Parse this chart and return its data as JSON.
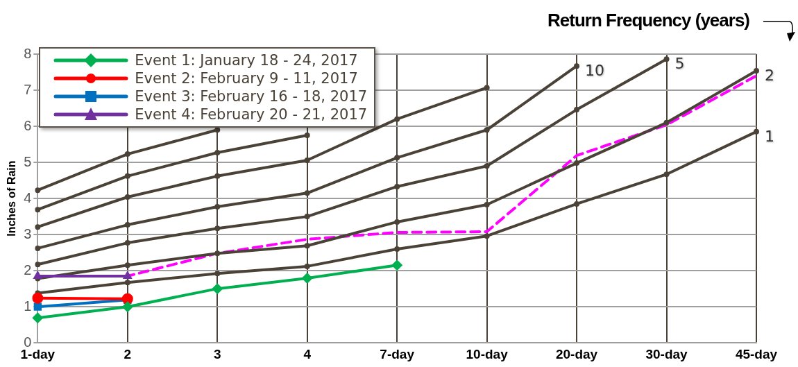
{
  "chart_data": {
    "type": "line",
    "ylabel": "Inches of Rain",
    "categories": [
      "1-day",
      "2",
      "3",
      "4",
      "7-day",
      "10-day",
      "20-day",
      "30-day",
      "45-day"
    ],
    "ylim": [
      0,
      8
    ],
    "yticks": [
      0,
      1,
      2,
      3,
      4,
      5,
      6,
      7,
      8
    ],
    "grid": true,
    "legend": "top left",
    "series": [
      {
        "name": "Event 1: January 18 - 24, 2017",
        "color": "#00b050",
        "marker": "diamond",
        "values": [
          0.69,
          1.0,
          1.5,
          1.79,
          2.15,
          null,
          null,
          null,
          null
        ]
      },
      {
        "name": "Event 2: February 9 - 11, 2017",
        "color": "#ff0000",
        "marker": "circle",
        "values": [
          1.24,
          1.22,
          null,
          null,
          null,
          null,
          null,
          null,
          null
        ]
      },
      {
        "name": "Event 3: February 16 - 18, 2017",
        "color": "#0070c0",
        "marker": "square",
        "values": [
          1.0,
          1.19,
          null,
          null,
          null,
          null,
          null,
          null,
          null
        ]
      },
      {
        "name": "Event 4: February 20 - 21, 2017",
        "color": "#7030a0",
        "marker": "triangle",
        "values": [
          1.85,
          1.85,
          null,
          null,
          null,
          null,
          null,
          null,
          null
        ]
      },
      {
        "color": "#4a4237",
        "marker": "circle",
        "values": [
          1.38,
          1.67,
          1.92,
          2.12,
          2.6,
          2.96,
          3.85,
          4.67,
          5.85
        ]
      },
      {
        "color": "#4a4237",
        "marker": "circle",
        "values": [
          1.78,
          2.15,
          2.48,
          2.69,
          3.35,
          3.83,
          4.98,
          6.1,
          7.54
        ]
      },
      {
        "color": "#4a4237",
        "marker": "circle",
        "values": [
          2.17,
          2.77,
          3.17,
          3.5,
          4.33,
          4.9,
          6.46,
          7.86,
          null
        ]
      },
      {
        "color": "#4a4237",
        "marker": "circle",
        "values": [
          2.62,
          3.27,
          3.77,
          4.15,
          5.13,
          5.9,
          7.67,
          null,
          null
        ]
      },
      {
        "color": "#4a4237",
        "marker": "circle",
        "values": [
          3.21,
          4.04,
          4.62,
          5.06,
          6.2,
          7.07,
          null,
          null,
          null
        ]
      },
      {
        "color": "#4a4237",
        "marker": "circle",
        "values": [
          3.69,
          4.62,
          5.27,
          5.75,
          null,
          null,
          null,
          null,
          null
        ]
      },
      {
        "color": "#4a4237",
        "marker": "circle",
        "values": [
          4.23,
          5.23,
          5.9,
          null,
          null,
          null,
          null,
          null,
          null
        ]
      },
      {
        "color": "#ff00ff",
        "marker": "none",
        "line_style": "dashed",
        "values": [
          1.85,
          1.85,
          2.48,
          2.87,
          3.06,
          3.08,
          5.19,
          6.04,
          7.4
        ]
      }
    ],
    "annotations": [
      "Return Frequency (years)",
      {
        "text": "10",
        "x": "20-day",
        "y": 7.67
      },
      {
        "text": "5",
        "x": "30-day",
        "y": 7.86
      },
      {
        "text": "2",
        "x": "45-day",
        "y": 7.54
      },
      {
        "text": "1",
        "x": "45-day",
        "y": 5.85
      }
    ]
  }
}
